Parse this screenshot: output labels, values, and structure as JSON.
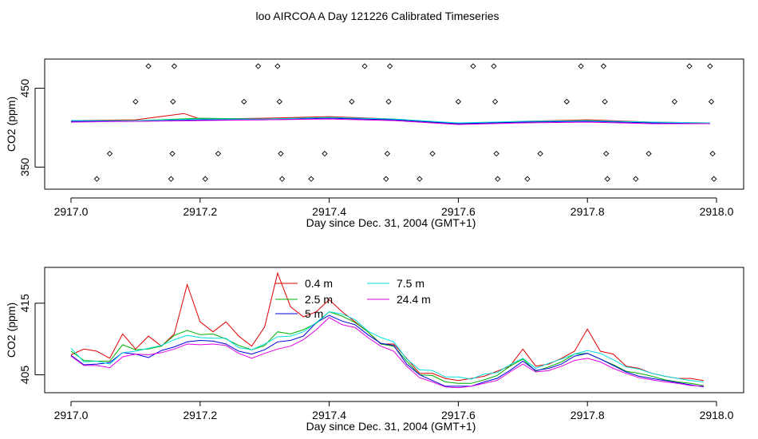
{
  "page": {
    "title": "loo AIRCOA A  Day 121226  Calibrated Timeseries"
  },
  "colors": {
    "0.4 m": "#e00000",
    "2.5 m": "#00b000",
    "5 m": "#0000e0",
    "7.5 m": "#00e0e0",
    "24.4 m": "#e000e0",
    "axes": "#000000"
  },
  "chart_data": [
    {
      "type": "line",
      "title": "loo AIRCOA A  Day 121226  Calibrated Timeseries",
      "xlabel": "Day since Dec. 31, 2004 (GMT+1)",
      "ylabel": "CO2 (ppm)",
      "xlim": [
        2917.0,
        2918.0
      ],
      "ylim": [
        322,
        487
      ],
      "xticks": [
        2917.0,
        2917.2,
        2917.4,
        2917.6,
        2917.8,
        2918.0
      ],
      "yticks": [
        350,
        450
      ],
      "xtick_labels": [
        "2917.0",
        "2917.2",
        "2917.4",
        "2917.6",
        "2917.8",
        "2918.0"
      ],
      "ytick_labels": [
        "350",
        "450"
      ],
      "grid": false,
      "points": [
        {
          "x": 2917.04,
          "y": 335
        },
        {
          "x": 2917.06,
          "y": 367
        },
        {
          "x": 2917.1,
          "y": 433
        },
        {
          "x": 2917.12,
          "y": 478
        },
        {
          "x": 2917.155,
          "y": 335
        },
        {
          "x": 2917.157,
          "y": 367
        },
        {
          "x": 2917.158,
          "y": 433
        },
        {
          "x": 2917.16,
          "y": 478
        },
        {
          "x": 2917.208,
          "y": 335
        },
        {
          "x": 2917.228,
          "y": 367
        },
        {
          "x": 2917.268,
          "y": 433
        },
        {
          "x": 2917.29,
          "y": 478
        },
        {
          "x": 2917.32,
          "y": 478
        },
        {
          "x": 2917.323,
          "y": 433
        },
        {
          "x": 2917.325,
          "y": 367
        },
        {
          "x": 2917.327,
          "y": 335
        },
        {
          "x": 2917.372,
          "y": 335
        },
        {
          "x": 2917.393,
          "y": 367
        },
        {
          "x": 2917.435,
          "y": 433
        },
        {
          "x": 2917.455,
          "y": 478
        },
        {
          "x": 2917.488,
          "y": 335
        },
        {
          "x": 2917.49,
          "y": 367
        },
        {
          "x": 2917.492,
          "y": 433
        },
        {
          "x": 2917.494,
          "y": 478
        },
        {
          "x": 2917.54,
          "y": 335
        },
        {
          "x": 2917.56,
          "y": 367
        },
        {
          "x": 2917.6,
          "y": 433
        },
        {
          "x": 2917.623,
          "y": 478
        },
        {
          "x": 2917.655,
          "y": 478
        },
        {
          "x": 2917.657,
          "y": 433
        },
        {
          "x": 2917.659,
          "y": 367
        },
        {
          "x": 2917.661,
          "y": 335
        },
        {
          "x": 2917.707,
          "y": 335
        },
        {
          "x": 2917.727,
          "y": 367
        },
        {
          "x": 2917.768,
          "y": 433
        },
        {
          "x": 2917.79,
          "y": 478
        },
        {
          "x": 2917.825,
          "y": 478
        },
        {
          "x": 2917.827,
          "y": 433
        },
        {
          "x": 2917.829,
          "y": 367
        },
        {
          "x": 2917.831,
          "y": 335
        },
        {
          "x": 2917.875,
          "y": 335
        },
        {
          "x": 2917.895,
          "y": 367
        },
        {
          "x": 2917.935,
          "y": 433
        },
        {
          "x": 2917.958,
          "y": 478
        },
        {
          "x": 2917.99,
          "y": 478
        },
        {
          "x": 2917.992,
          "y": 433
        },
        {
          "x": 2917.994,
          "y": 367
        },
        {
          "x": 2917.996,
          "y": 335
        }
      ],
      "x": [
        2917.0,
        2917.1,
        2917.2,
        2917.3,
        2917.4,
        2917.5,
        2917.6,
        2917.7,
        2917.8,
        2917.9,
        2917.99
      ],
      "series": [
        {
          "values": [
            409,
            410,
            411,
            412,
            414,
            411,
            405,
            408,
            410,
            407,
            406
          ],
          "spike": {
            "x": 2917.175,
            "y": 418
          }
        },
        {
          "values": [
            408,
            409,
            412,
            411,
            413,
            410,
            405,
            407,
            409,
            406,
            405
          ]
        },
        {
          "values": [
            408,
            408,
            410,
            410,
            412,
            410,
            405,
            407,
            408,
            406,
            405
          ]
        },
        {
          "values": [
            409,
            409,
            411,
            411,
            413,
            411,
            406,
            408,
            409,
            407,
            406
          ]
        },
        {
          "values": [
            407,
            408,
            409,
            410,
            411,
            409,
            404,
            406,
            407,
            405,
            405
          ]
        }
      ]
    },
    {
      "type": "line",
      "xlabel": "Day since Dec. 31, 2004 (GMT+1)",
      "ylabel": "CO2 (ppm)",
      "xlim": [
        2917.0,
        2918.0
      ],
      "ylim": [
        402.5,
        420
      ],
      "xticks": [
        2917.0,
        2917.2,
        2917.4,
        2917.6,
        2917.8,
        2918.0
      ],
      "yticks": [
        405,
        415
      ],
      "xtick_labels": [
        "2917.0",
        "2917.2",
        "2917.4",
        "2917.6",
        "2917.8",
        "2918.0"
      ],
      "ytick_labels": [
        "405",
        "415"
      ],
      "grid": false,
      "legend": {
        "placement": "top-center",
        "entries": [
          "0.4 m",
          "2.5 m",
          "5 m",
          "7.5 m",
          "24.4 m"
        ]
      },
      "x": [
        2917.0,
        2917.02,
        2917.04,
        2917.06,
        2917.08,
        2917.1,
        2917.12,
        2917.14,
        2917.16,
        2917.18,
        2917.2,
        2917.22,
        2917.24,
        2917.26,
        2917.28,
        2917.3,
        2917.32,
        2917.34,
        2917.36,
        2917.38,
        2917.4,
        2917.42,
        2917.44,
        2917.46,
        2917.48,
        2917.5,
        2917.52,
        2917.54,
        2917.56,
        2917.58,
        2917.6,
        2917.62,
        2917.64,
        2917.66,
        2917.68,
        2917.7,
        2917.72,
        2917.74,
        2917.76,
        2917.78,
        2917.8,
        2917.82,
        2917.84,
        2917.86,
        2917.88,
        2917.9,
        2917.92,
        2917.94,
        2917.96,
        2917.98
      ],
      "series": [
        {
          "name": "0.4 m",
          "values": [
            407.8,
            408.6,
            408.3,
            407.3,
            410.7,
            408.6,
            410.4,
            409.0,
            410.7,
            417.6,
            412.4,
            411.0,
            412.4,
            410.4,
            409.0,
            411.7,
            419.2,
            414.5,
            413.1,
            413.8,
            415.5,
            413.8,
            412.4,
            411.0,
            409.3,
            409.3,
            407.3,
            405.2,
            405.2,
            404.5,
            404.2,
            404.5,
            404.8,
            405.5,
            406.2,
            408.6,
            406.2,
            406.5,
            407.3,
            408.3,
            411.4,
            408.3,
            407.9,
            406.2,
            405.9,
            405.2,
            404.8,
            404.5,
            404.5,
            404.2
          ]
        },
        {
          "name": "2.5 m",
          "values": [
            408.3,
            407.0,
            406.9,
            406.9,
            409.2,
            408.5,
            408.6,
            409.0,
            410.5,
            411.2,
            410.6,
            410.7,
            410.0,
            409.1,
            408.5,
            409.1,
            411.0,
            410.7,
            411.3,
            412.2,
            413.8,
            413.2,
            412.3,
            411.0,
            409.3,
            409.0,
            406.9,
            405.0,
            404.9,
            404.0,
            403.8,
            403.8,
            404.3,
            404.9,
            406.2,
            407.2,
            405.5,
            406.1,
            406.8,
            407.9,
            408.0,
            407.2,
            406.4,
            405.5,
            405.2,
            404.8,
            404.3,
            404.0,
            403.8,
            403.5
          ]
        },
        {
          "name": "5 m",
          "values": [
            407.7,
            406.4,
            406.5,
            406.7,
            408.1,
            407.9,
            407.4,
            408.4,
            408.9,
            409.6,
            409.8,
            409.7,
            409.3,
            408.3,
            407.9,
            408.5,
            409.6,
            409.8,
            410.4,
            412.3,
            413.3,
            412.5,
            412.0,
            410.6,
            409.4,
            409.1,
            406.5,
            405.0,
            404.2,
            403.4,
            403.4,
            403.4,
            404.0,
            404.5,
            405.6,
            406.9,
            405.6,
            405.9,
            406.5,
            407.6,
            408.0,
            407.2,
            406.3,
            405.4,
            404.8,
            404.5,
            404.2,
            403.9,
            403.6,
            403.3
          ]
        },
        {
          "name": "7.5 m",
          "values": [
            408.7,
            406.8,
            406.9,
            406.5,
            408.1,
            408.3,
            408.7,
            409.1,
            409.9,
            410.5,
            410.2,
            410.1,
            410.1,
            408.8,
            408.5,
            409.3,
            410.3,
            410.4,
            411.0,
            412.3,
            413.8,
            413.5,
            412.7,
            411.1,
            410.2,
            409.6,
            407.2,
            405.7,
            405.6,
            404.7,
            404.7,
            404.4,
            405.1,
            405.3,
            406.4,
            407.3,
            405.9,
            406.6,
            407.2,
            407.9,
            408.4,
            408.0,
            407.1,
            406.1,
            405.8,
            405.2,
            404.8,
            404.5,
            404.2,
            404.0
          ]
        },
        {
          "name": "24.4 m",
          "values": [
            407.6,
            406.3,
            406.3,
            406.0,
            407.5,
            407.9,
            407.8,
            408.1,
            408.6,
            409.3,
            409.2,
            409.3,
            409.1,
            408.0,
            407.3,
            408.0,
            408.6,
            409.0,
            409.9,
            411.3,
            413.0,
            412.0,
            411.6,
            410.2,
            409.0,
            408.3,
            406.2,
            404.6,
            404.0,
            403.3,
            403.2,
            403.4,
            403.8,
            404.2,
            405.4,
            406.5,
            405.4,
            405.6,
            406.2,
            407.0,
            407.3,
            406.8,
            405.9,
            405.2,
            404.6,
            404.3,
            404.0,
            403.8,
            403.5,
            403.4
          ]
        }
      ]
    }
  ]
}
